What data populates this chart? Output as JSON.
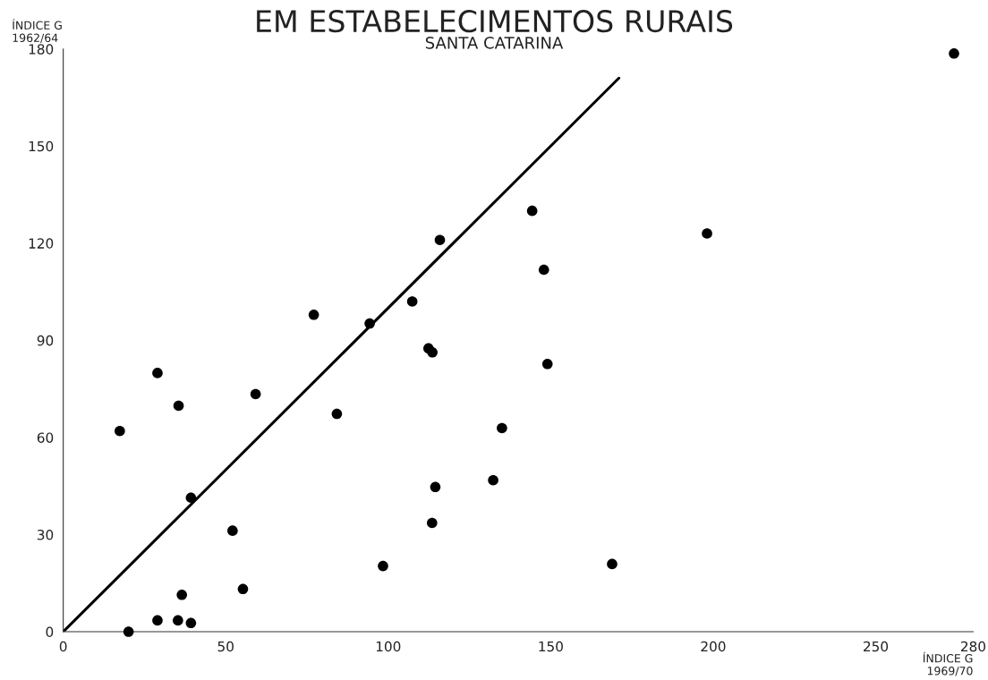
{
  "chart_data": {
    "type": "scatter",
    "title": "EM ESTABELECIMENTOS RURAIS",
    "subtitle": "SANTA CATARINA",
    "xlabel": "ÍNDICE G\n1969/70",
    "ylabel": "ÍNDICE G\n1962/64",
    "xlim": [
      0,
      280
    ],
    "ylim": [
      0,
      180
    ],
    "xticks": [
      0,
      50,
      100,
      150,
      200,
      250,
      280
    ],
    "yticks": [
      0,
      30,
      60,
      90,
      120,
      150,
      180
    ],
    "grid": false,
    "legend": false,
    "marker": "circle",
    "series": [
      {
        "color": "#000000",
        "x": [
          17.4,
          29.0,
          35.5,
          59.2,
          77.1,
          84.2,
          94.3,
          107.4,
          112.4,
          113.6,
          115.9,
          144.3,
          147.9,
          149.0,
          135.0,
          132.3,
          114.5,
          113.5,
          98.4,
          168.9,
          198.1,
          274.1,
          39.3,
          52.1,
          36.5,
          55.3,
          29.0,
          35.3,
          39.3,
          20.1
        ],
        "values": [
          62.0,
          79.9,
          69.8,
          73.4,
          97.9,
          67.3,
          95.2,
          102.0,
          87.5,
          86.3,
          121.0,
          130.0,
          111.8,
          82.7,
          62.9,
          46.8,
          44.7,
          33.6,
          20.3,
          20.9,
          123.0,
          178.6,
          41.4,
          31.2,
          11.4,
          13.2,
          3.5,
          3.5,
          2.7,
          0
        ]
      },
      {
        "type": "line",
        "color": "#000000",
        "marker": "none",
        "line_style": "solid",
        "x": [
          0,
          171
        ],
        "values": [
          0,
          171
        ]
      }
    ]
  }
}
